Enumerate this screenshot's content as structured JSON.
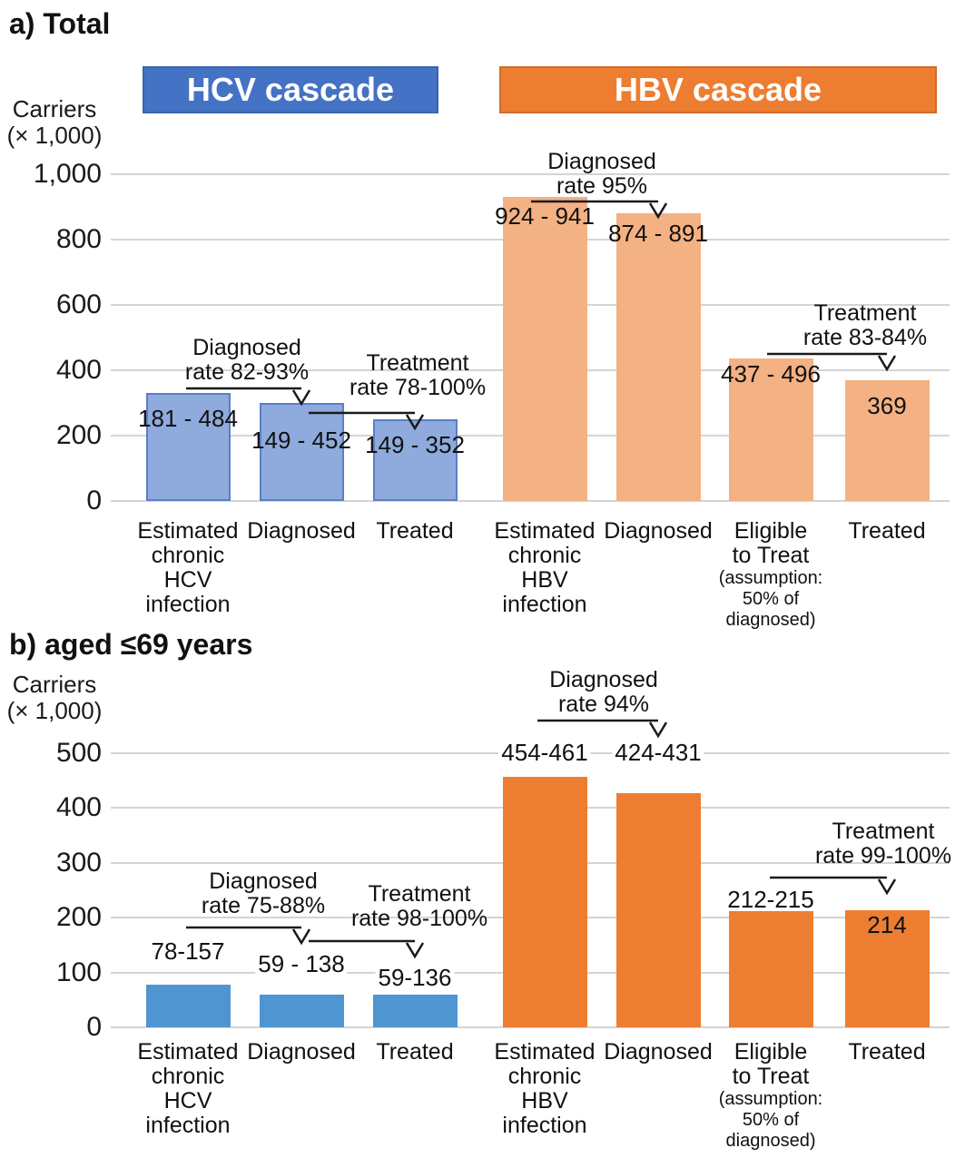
{
  "chart_data": [
    {
      "type": "bar",
      "panel_label": "a) Total",
      "ylabel": "Carriers (× 1,000)",
      "ylabel_lines": [
        "Carriers",
        "(× 1,000)"
      ],
      "ylim": [
        0,
        1000
      ],
      "ytick_values": [
        1000,
        800,
        600,
        400,
        200,
        0
      ],
      "ytick_labels": [
        "1,000",
        "800",
        "600",
        "400",
        "200",
        "0"
      ],
      "grid": true,
      "legend_position": "none",
      "groups": [
        {
          "name": "HCV cascade",
          "banner_color": "#4472C4",
          "bar_fill": "#8FAADC",
          "bar_border": "#5B7EC7",
          "bars": [
            {
              "category_lines": [
                "Estimated",
                "chronic",
                "HCV",
                "infection"
              ],
              "category": "Estimated chronic HCV infection",
              "range_label": "181 - 484",
              "range": [
                181,
                484
              ],
              "value": 332,
              "label_placement": "inside"
            },
            {
              "category_lines": [
                "Diagnosed"
              ],
              "category": "Diagnosed",
              "range_label": "149 - 452",
              "range": [
                149,
                452
              ],
              "value": 300,
              "label_placement": "inside"
            },
            {
              "category_lines": [
                "Treated"
              ],
              "category": "Treated",
              "range_label": "149 - 352",
              "range": [
                149,
                352
              ],
              "value": 250,
              "label_placement": "inside"
            }
          ],
          "annotations": [
            {
              "lines": [
                "Diagnosed",
                "rate 82-93%"
              ],
              "text": "Diagnosed rate 82-93%",
              "from_bar": 0,
              "to_bar": 1
            },
            {
              "lines": [
                "Treatment",
                "rate 78-100%"
              ],
              "text": "Treatment rate 78-100%",
              "from_bar": 1,
              "to_bar": 2
            }
          ]
        },
        {
          "name": "HBV cascade",
          "banner_color": "#ED7D31",
          "bar_fill": "#F4B183",
          "bar_border": null,
          "bars": [
            {
              "category_lines": [
                "Estimated",
                "chronic",
                "HBV",
                "infection"
              ],
              "category": "Estimated chronic HBV infection",
              "range_label": "924 - 941",
              "range": [
                924,
                941
              ],
              "value": 932,
              "label_placement": "inside"
            },
            {
              "category_lines": [
                "Diagnosed"
              ],
              "category": "Diagnosed",
              "range_label": "874 - 891",
              "range": [
                874,
                891
              ],
              "value": 882,
              "label_placement": "inside"
            },
            {
              "category_lines": [
                "Eligible",
                "to Treat"
              ],
              "category": "Eligible to Treat",
              "sublabel_lines": [
                "(assumption:",
                "50% of",
                "diagnosed)"
              ],
              "range_label": "437 - 496",
              "range": [
                437,
                496
              ],
              "value": 437,
              "label_placement": "inside"
            },
            {
              "category_lines": [
                "Treated"
              ],
              "category": "Treated",
              "range_label": "369",
              "range": [
                369,
                369
              ],
              "value": 369,
              "label_placement": "inside"
            }
          ],
          "annotations": [
            {
              "lines": [
                "Diagnosed",
                "rate 95%"
              ],
              "text": "Diagnosed rate 95%",
              "from_bar": 0,
              "to_bar": 1
            },
            {
              "lines": [
                "Treatment",
                "rate 83-84%"
              ],
              "text": "Treatment rate 83-84%",
              "from_bar": 2,
              "to_bar": 3
            }
          ]
        }
      ]
    },
    {
      "type": "bar",
      "panel_label": "b) aged ≤69 years",
      "ylabel": "Carriers (× 1,000)",
      "ylabel_lines": [
        "Carriers",
        "(× 1,000)"
      ],
      "ylim": [
        0,
        500
      ],
      "ytick_values": [
        500,
        400,
        300,
        200,
        100,
        0
      ],
      "ytick_labels": [
        "500",
        "400",
        "300",
        "200",
        "100",
        "0"
      ],
      "grid": true,
      "legend_position": "none",
      "groups": [
        {
          "name": "HCV cascade",
          "banner_color": null,
          "bar_fill": "#4E95D2",
          "bar_border": null,
          "bars": [
            {
              "category_lines": [
                "Estimated",
                "chronic",
                "HCV",
                "infection"
              ],
              "category": "Estimated chronic HCV infection",
              "range_label": "78-157",
              "range": [
                78,
                157
              ],
              "value": 78,
              "label_placement": "above"
            },
            {
              "category_lines": [
                "Diagnosed"
              ],
              "category": "Diagnosed",
              "range_label": "59 - 138",
              "range": [
                59,
                138
              ],
              "value": 59,
              "label_placement": "above"
            },
            {
              "category_lines": [
                "Treated"
              ],
              "category": "Treated",
              "range_label": "59-136",
              "range": [
                59,
                136
              ],
              "value": 59,
              "label_placement": "above"
            }
          ],
          "annotations": [
            {
              "lines": [
                "Diagnosed",
                "rate 75-88%"
              ],
              "text": "Diagnosed rate 75-88%",
              "from_bar": 0,
              "to_bar": 1
            },
            {
              "lines": [
                "Treatment",
                "rate 98-100%"
              ],
              "text": "Treatment rate 98-100%",
              "from_bar": 1,
              "to_bar": 2
            }
          ]
        },
        {
          "name": "HBV cascade",
          "banner_color": null,
          "bar_fill": "#ED7D31",
          "bar_border": null,
          "bars": [
            {
              "category_lines": [
                "Estimated",
                "chronic",
                "HBV",
                "infection"
              ],
              "category": "Estimated chronic HBV infection",
              "range_label": "454-461",
              "range": [
                454,
                461
              ],
              "value": 457,
              "label_placement": "above"
            },
            {
              "category_lines": [
                "Diagnosed"
              ],
              "category": "Diagnosed",
              "range_label": "424-431",
              "range": [
                424,
                431
              ],
              "value": 427,
              "label_placement": "above"
            },
            {
              "category_lines": [
                "Eligible",
                "to Treat"
              ],
              "category": "Eligible to Treat",
              "sublabel_lines": [
                "(assumption:",
                "50% of",
                "diagnosed)"
              ],
              "range_label": "212-215",
              "range": [
                212,
                215
              ],
              "value": 213,
              "label_placement": "above"
            },
            {
              "category_lines": [
                "Treated"
              ],
              "category": "Treated",
              "range_label": "214",
              "range": [
                214,
                214
              ],
              "value": 214,
              "label_placement": "inside"
            }
          ],
          "annotations": [
            {
              "lines": [
                "Diagnosed",
                "rate 94%"
              ],
              "text": "Diagnosed rate 94%",
              "from_bar": 0,
              "to_bar": 1
            },
            {
              "lines": [
                "Treatment",
                "rate 99-100%"
              ],
              "text": "Treatment rate 99-100%",
              "from_bar": 2,
              "to_bar": 3
            }
          ]
        }
      ]
    }
  ],
  "colors": {
    "hcv_banner": "#4472C4",
    "hbv_banner": "#ED7D31",
    "hcv_bar_light": "#8FAADC",
    "hbv_bar_light": "#F4B183",
    "hcv_bar_strong": "#4E95D2",
    "hbv_bar_strong": "#ED7D31",
    "gridline": "#D4D4D4",
    "annotation_arrow": "#1a1a1a"
  }
}
